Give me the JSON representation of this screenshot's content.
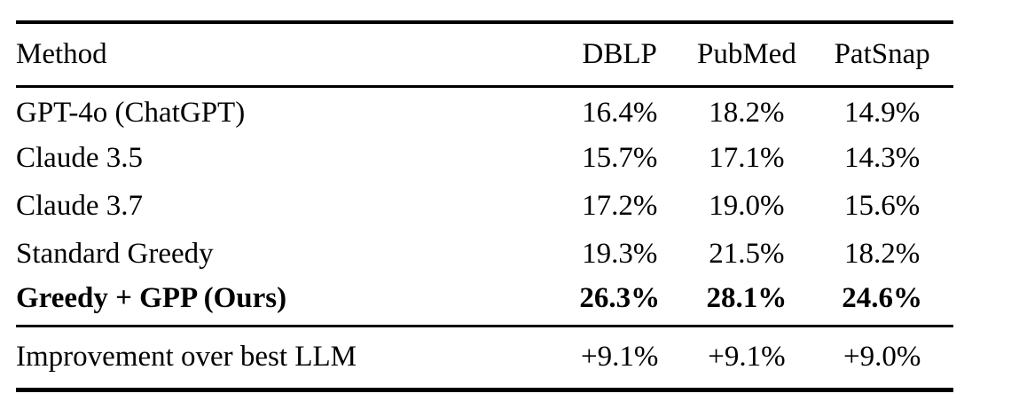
{
  "table": {
    "columns": {
      "method": "Method",
      "dblp": "DBLP",
      "pubmed": "PubMed",
      "patsnap": "PatSnap"
    },
    "rows": [
      {
        "method": "GPT-4o (ChatGPT)",
        "values": [
          "16.4%",
          "18.2%",
          "14.9%"
        ]
      },
      {
        "method": "Claude 3.5",
        "values": [
          "15.7%",
          "17.1%",
          "14.3%"
        ]
      },
      {
        "method": "Claude 3.7",
        "values": [
          "17.2%",
          "19.0%",
          "15.6%"
        ]
      },
      {
        "method": "Standard Greedy",
        "values": [
          "19.3%",
          "21.5%",
          "18.2%"
        ]
      },
      {
        "method": "Greedy + GPP (Ours)",
        "values": [
          "26.3%",
          "28.1%",
          "24.6%"
        ]
      }
    ],
    "footer": {
      "label": "Improvement over best LLM",
      "values": [
        "+9.1%",
        "+9.1%",
        "+9.0%"
      ]
    }
  }
}
